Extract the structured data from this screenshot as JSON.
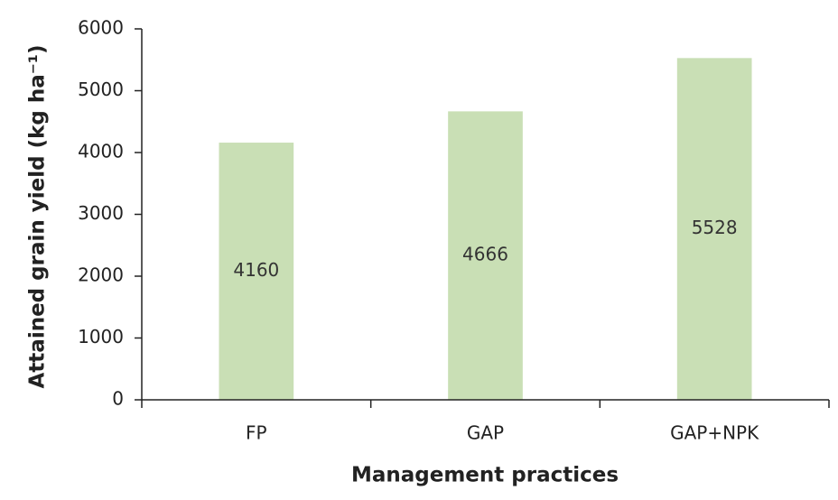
{
  "chart_data": {
    "type": "bar",
    "xlabel": "Management practices",
    "ylabel": "Attained grain yield (kg ha⁻¹)",
    "categories": [
      "FP",
      "GAP",
      "GAP+NPK"
    ],
    "values": [
      4160,
      4666,
      5528
    ],
    "color": "#c9dfb5",
    "ylim": [
      0,
      6000
    ],
    "yticks": [
      0,
      1000,
      2000,
      3000,
      4000,
      5000,
      6000
    ],
    "grid": false
  }
}
